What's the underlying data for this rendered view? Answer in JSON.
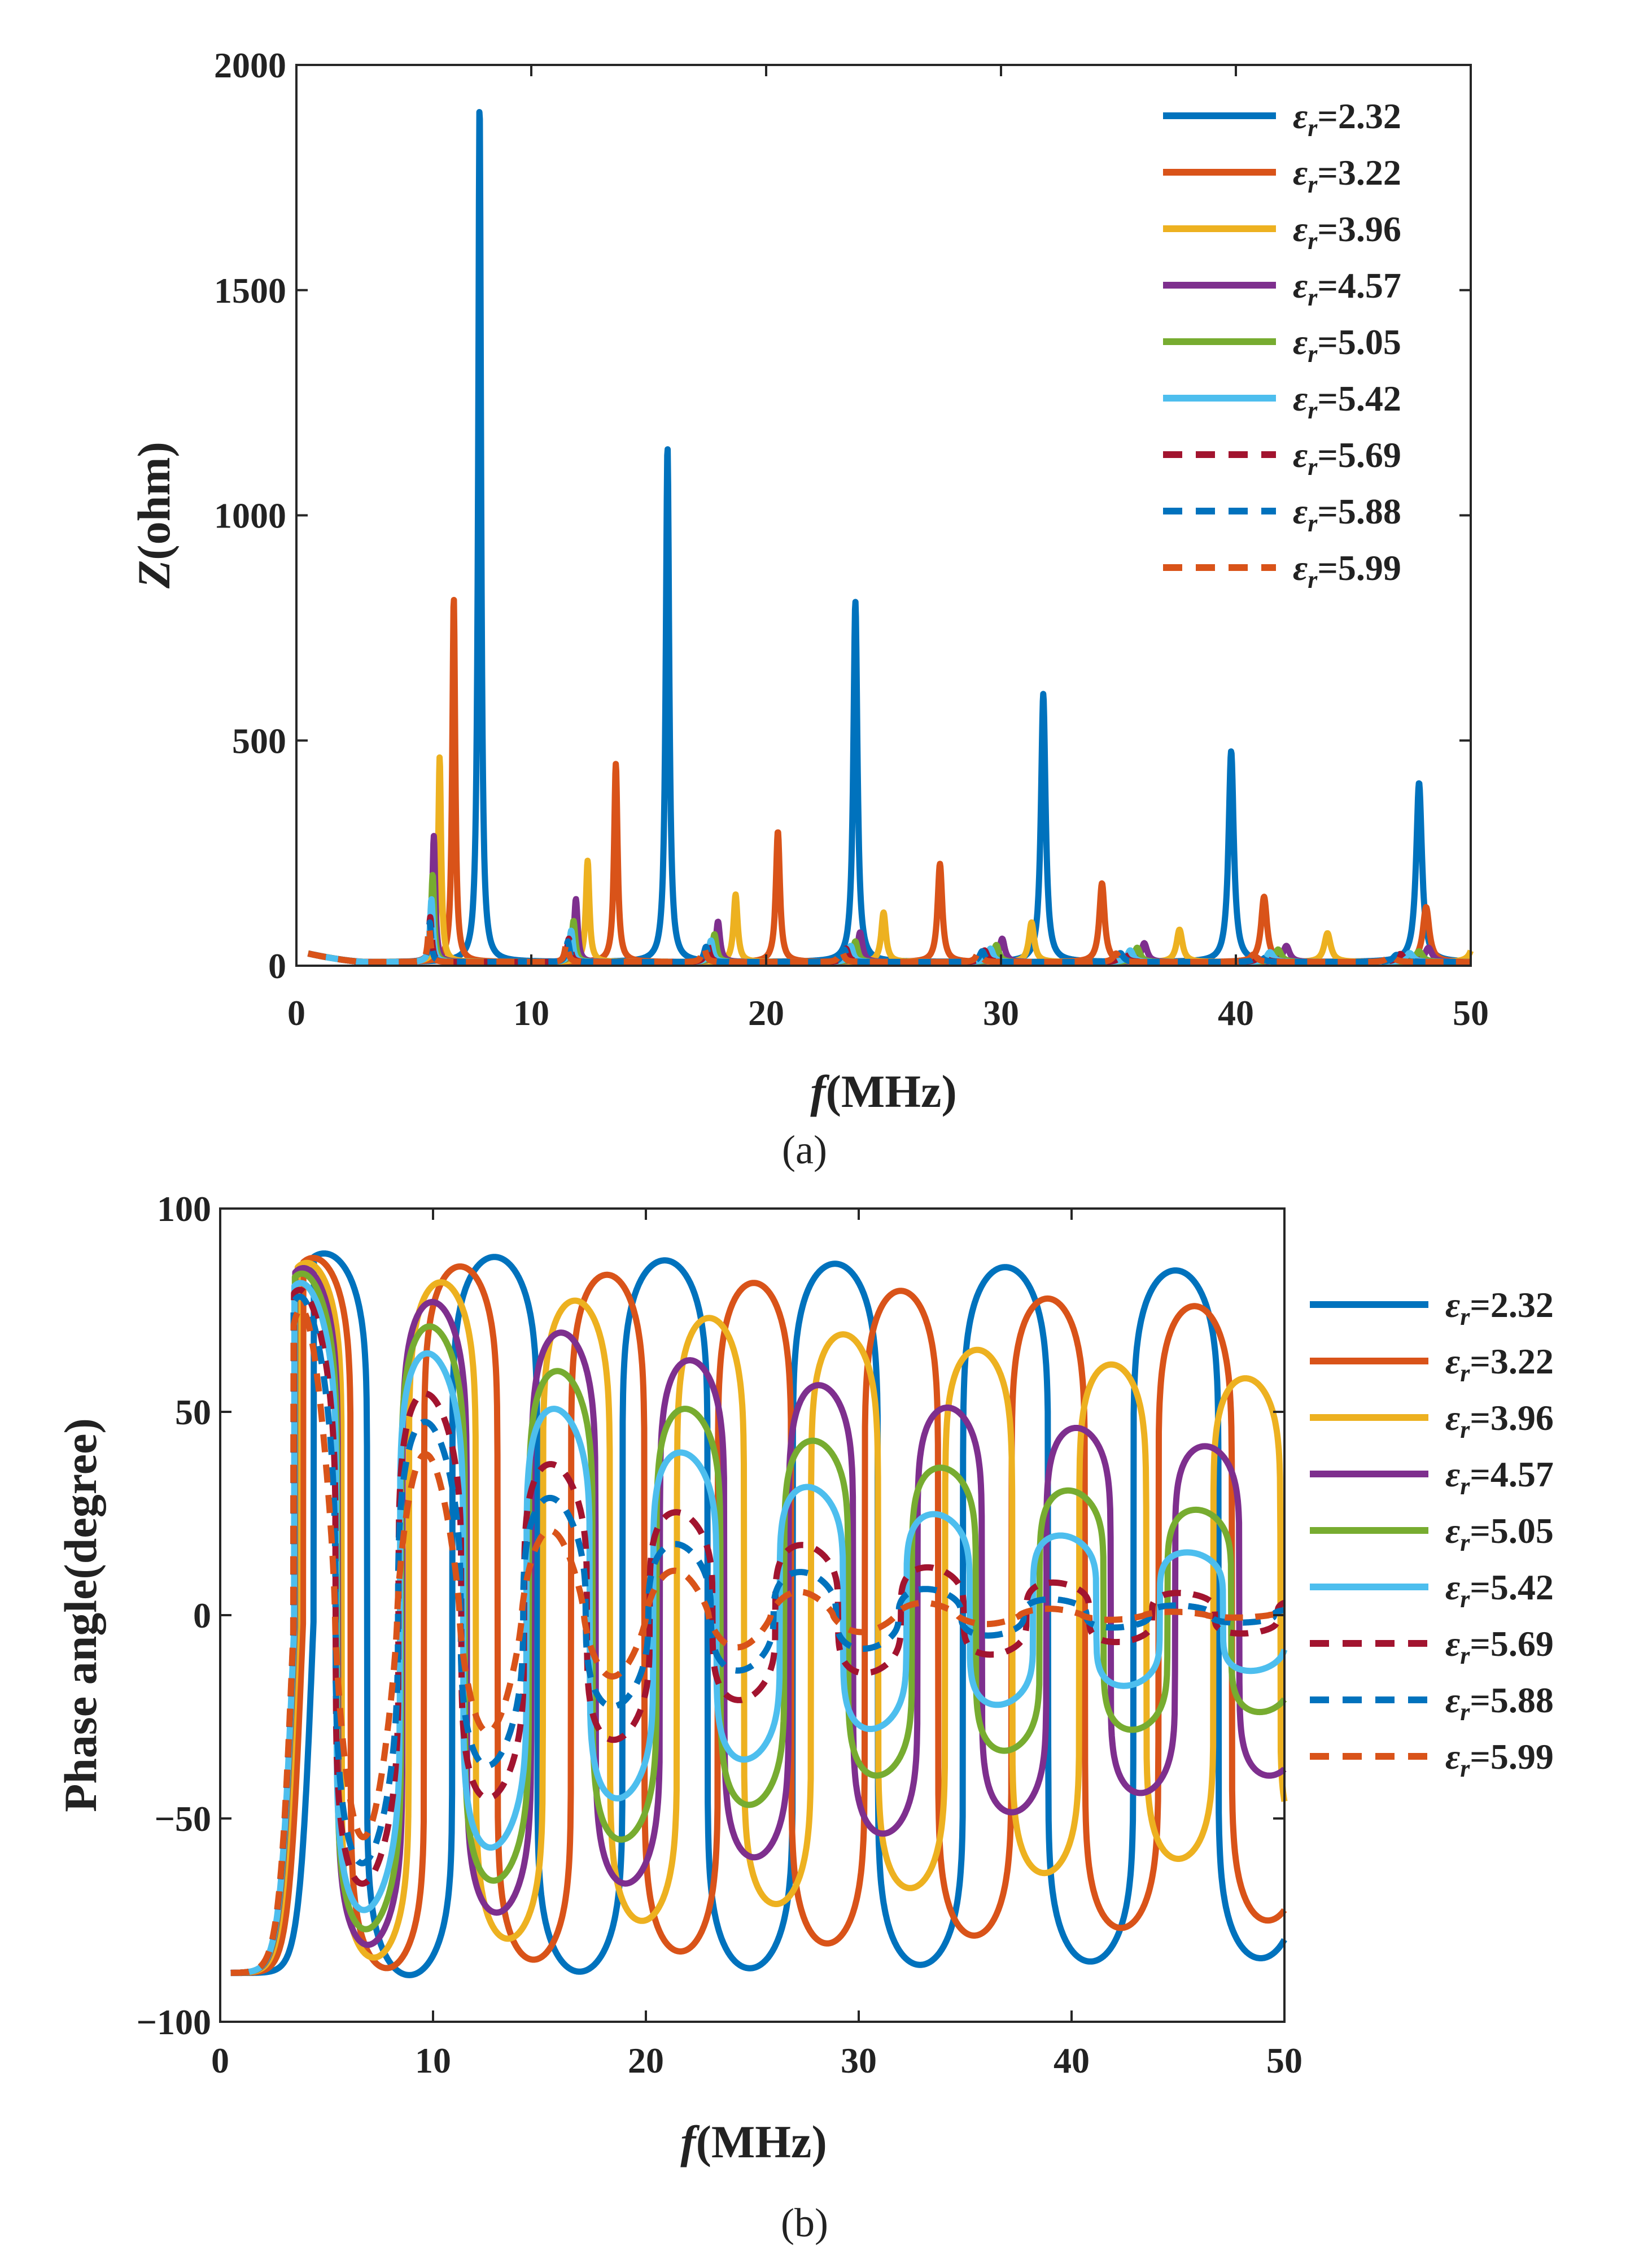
{
  "chart_data": [
    {
      "type": "line",
      "panel": "a",
      "caption": "(a)",
      "xlabel": "f(MHz)",
      "xlabel_italic": "f",
      "xlabel_rest": "(MHz)",
      "ylabel": "Z(ohm)",
      "ylabel_italic": "Z",
      "ylabel_rest": "(ohm)",
      "xlim": [
        0,
        50
      ],
      "ylim": [
        0,
        2000
      ],
      "xticks": [
        0,
        10,
        20,
        30,
        40,
        50
      ],
      "yticks": [
        0,
        500,
        1000,
        1500,
        2000
      ],
      "grid": false,
      "legend_position": "top-right inside",
      "f_start": 0.5,
      "series": [
        {
          "name": "εr=2.32",
          "eps_text": "ε",
          "sub_text": "r",
          "value_text": "=2.32",
          "color": "#0072BD",
          "dash": false,
          "base_MHz": 8.0,
          "peaks": [
            1910,
            1145,
            800,
            595,
            468,
            398
          ],
          "phase_max": 89,
          "phase_decay": 0.12
        },
        {
          "name": "εr=3.22",
          "eps_text": "ε",
          "sub_text": "r",
          "value_text": "=3.22",
          "color": "#D95319",
          "dash": false,
          "base_MHz": 6.9,
          "peaks": [
            810,
            440,
            290,
            218,
            175,
            145,
            122
          ],
          "phase_max": 88,
          "phase_decay": 0.35
        },
        {
          "name": "εr=3.96",
          "eps_text": "ε",
          "sub_text": "r",
          "value_text": "=3.96",
          "color": "#EDB120",
          "dash": false,
          "base_MHz": 6.3,
          "peaks": [
            455,
            225,
            150,
            110,
            88,
            72,
            64,
            56
          ],
          "phase_max": 87,
          "phase_decay": 0.9
        },
        {
          "name": "εr=4.57",
          "eps_text": "ε",
          "sub_text": "r",
          "value_text": "=4.57",
          "color": "#7E2F8E",
          "dash": false,
          "base_MHz": 6.05,
          "peaks": [
            280,
            140,
            90,
            66,
            52,
            42,
            36,
            32
          ],
          "phase_max": 86,
          "phase_decay": 1.7
        },
        {
          "name": "εr=5.05",
          "eps_text": "ε",
          "sub_text": "r",
          "value_text": "=5.05",
          "color": "#77AC30",
          "dash": false,
          "base_MHz": 6.0,
          "peaks": [
            195,
            92,
            62,
            46,
            38,
            32,
            28,
            24
          ],
          "phase_max": 85,
          "phase_decay": 2.8
        },
        {
          "name": "εr=5.42",
          "eps_text": "ε",
          "sub_text": "r",
          "value_text": "=5.42",
          "color": "#4DBEEE",
          "dash": false,
          "base_MHz": 5.95,
          "peaks": [
            140,
            70,
            48,
            36,
            30,
            26,
            22,
            20
          ],
          "phase_max": 83,
          "phase_decay": 4.0
        },
        {
          "name": "εr=5.69",
          "eps_text": "ε",
          "sub_text": "r",
          "value_text": "=5.69",
          "color": "#A2142F",
          "dash": true,
          "base_MHz": 5.9,
          "peaks": [
            100,
            52,
            38,
            30,
            26,
            22,
            20,
            18
          ],
          "phase_max": 82,
          "phase_decay": 6.5
        },
        {
          "name": "εr=5.88",
          "eps_text": "ε",
          "sub_text": "r",
          "value_text": "=5.88",
          "color": "#0072BD",
          "dash": true,
          "base_MHz": 5.88,
          "peaks": [
            88,
            46,
            34,
            28,
            24,
            20,
            18,
            16
          ],
          "phase_max": 81,
          "phase_decay": 8.5
        },
        {
          "name": "εr=5.99",
          "eps_text": "ε",
          "sub_text": "r",
          "value_text": "=5.99",
          "color": "#D95319",
          "dash": true,
          "base_MHz": 5.85,
          "peaks": [
            78,
            42,
            32,
            26,
            22,
            19,
            17,
            15
          ],
          "phase_max": 79,
          "phase_decay": 11.0
        }
      ]
    },
    {
      "type": "line",
      "panel": "b",
      "caption": "(b)",
      "xlabel": "f(MHz)",
      "xlabel_italic": "f",
      "xlabel_rest": "(MHz)",
      "ylabel": "Phase angle(degree)",
      "xlim": [
        0,
        50
      ],
      "ylim": [
        -100,
        100
      ],
      "xticks": [
        0,
        10,
        20,
        30,
        40,
        50
      ],
      "yticks": [
        -100,
        -50,
        0,
        50,
        100
      ],
      "ytick_labels": [
        "−100",
        "−50",
        "0",
        "50",
        "100"
      ],
      "grid": false,
      "legend_position": "outside right",
      "series_ref": "same series as panel a"
    }
  ]
}
